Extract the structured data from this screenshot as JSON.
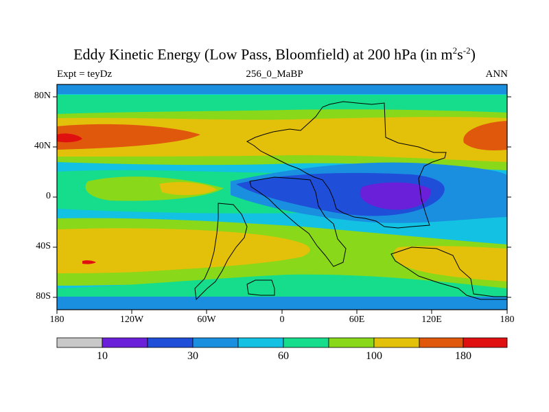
{
  "title": {
    "main": "Eddy Kinetic Energy (Low Pass, Bloomfield) at 200 hPa (in m",
    "sup1": "2",
    "mid": "s",
    "sup2": "-2",
    "end": ")"
  },
  "subtitle_left": "Expt = teyDz",
  "subtitle_center": "256_0_MaBP",
  "subtitle_right": "ANN",
  "lat_labels": [
    "80N",
    "40N",
    "0",
    "40S",
    "80S"
  ],
  "lon_labels": [
    "180",
    "120W",
    "60W",
    "0",
    "60E",
    "120E",
    "180"
  ],
  "colorbar": {
    "colors": [
      "#c8c8c8",
      "#6a1fd8",
      "#1f4fd8",
      "#1a8fe0",
      "#13c1e3",
      "#16dd8c",
      "#89d81a",
      "#e3c00a",
      "#e0580c",
      "#e01010"
    ],
    "labels": [
      "10",
      "30",
      "60",
      "100",
      "180"
    ]
  },
  "colors": {
    "bg": "#13c1e3",
    "light_blue": "#1a8fe0",
    "mid_blue": "#1f4fd8",
    "purple": "#6a1fd8",
    "green": "#16dd8c",
    "lime": "#89d81a",
    "yellow": "#e3c00a",
    "orange": "#e0580c",
    "red": "#e01010"
  }
}
